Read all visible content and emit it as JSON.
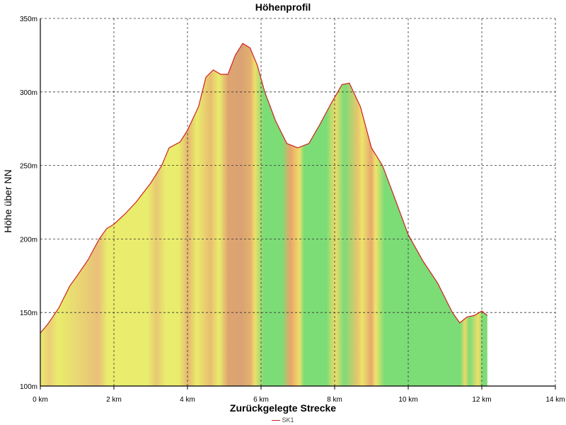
{
  "chart_data": {
    "type": "area",
    "title": "Höhenprofil",
    "xlabel": "Zurückgelegte Strecke",
    "ylabel": "Höhe über NN",
    "xlim": [
      0,
      14
    ],
    "ylim": [
      100,
      350
    ],
    "x_ticks": [
      "0 km",
      "2 km",
      "4 km",
      "6 km",
      "8 km",
      "10 km",
      "12 km",
      "14 km"
    ],
    "y_ticks": [
      "100m",
      "150m",
      "200m",
      "250m",
      "300m",
      "350m"
    ],
    "grid": true,
    "legend_position": "bottom",
    "series": [
      {
        "name": "SK1",
        "line_color": "#cc2222",
        "x": [
          0,
          0.2,
          0.5,
          0.8,
          1.0,
          1.3,
          1.6,
          1.8,
          2.0,
          2.3,
          2.6,
          3.0,
          3.3,
          3.5,
          3.8,
          4.0,
          4.3,
          4.5,
          4.7,
          4.9,
          5.1,
          5.3,
          5.5,
          5.7,
          5.9,
          6.1,
          6.4,
          6.7,
          7.0,
          7.3,
          7.6,
          7.9,
          8.2,
          8.4,
          8.7,
          9.0,
          9.3,
          9.6,
          10.0,
          10.4,
          10.8,
          11.2,
          11.4,
          11.6,
          11.8,
          12.0,
          12.15
        ],
        "y": [
          136,
          142,
          153,
          168,
          175,
          186,
          200,
          207,
          210,
          217,
          225,
          238,
          250,
          262,
          266,
          274,
          290,
          310,
          315,
          312,
          312,
          325,
          333,
          330,
          318,
          300,
          280,
          265,
          262,
          265,
          278,
          292,
          305,
          306,
          290,
          262,
          250,
          230,
          203,
          185,
          170,
          150,
          143,
          147,
          148,
          151,
          148
        ]
      }
    ],
    "gradient_colors": [
      "#e9ec6c",
      "#d9a373",
      "#7cdc76",
      "#f2ec6a",
      "#eaa46a"
    ]
  }
}
